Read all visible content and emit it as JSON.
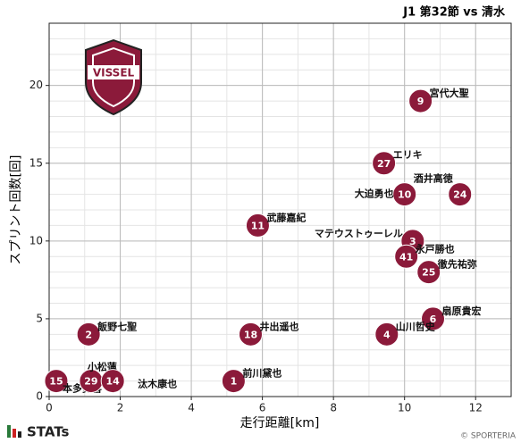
{
  "chart_data": {
    "type": "scatter",
    "title": "J1 第32節 vs 清水",
    "xlabel": "走行距離[km]",
    "ylabel": "スプリント回数[回]",
    "logo_text": "VISSEL",
    "footer_left": "STATs",
    "footer_right": "© SPORTERIA",
    "color": "#8b1a3a",
    "xlim": [
      0,
      13
    ],
    "ylim": [
      0,
      24
    ],
    "xticks": [
      0,
      2,
      4,
      6,
      8,
      10,
      12
    ],
    "yticks": [
      0,
      5,
      10,
      15,
      20
    ],
    "grid": true,
    "series": [
      {
        "numbers": [
          "9",
          "27",
          "10",
          "24",
          "11",
          "3",
          "41",
          "25",
          "6",
          "4",
          "2",
          "18",
          "1",
          "15",
          "29",
          "14"
        ],
        "names": [
          "宮代大聖",
          "エリキ",
          "大迫勇也",
          "酒井高徳",
          "武藤嘉紀",
          "マテウストゥーレル",
          "永戸勝也",
          "徹先祐弥",
          "扇原貴宏",
          "山川哲史",
          "飯野七聖",
          "井出遥也",
          "前川黛也",
          "本多勇喜",
          "小松蓮",
          "汰木康也"
        ],
        "x": [
          10.45,
          9.42,
          10.0,
          11.56,
          5.87,
          10.23,
          10.05,
          10.68,
          10.8,
          9.5,
          1.11,
          5.67,
          5.19,
          0.2,
          1.18,
          1.79
        ],
        "values": [
          19,
          15,
          13,
          13,
          11,
          10,
          9,
          8,
          5,
          4,
          4,
          4,
          1,
          1,
          1,
          1
        ]
      }
    ]
  }
}
